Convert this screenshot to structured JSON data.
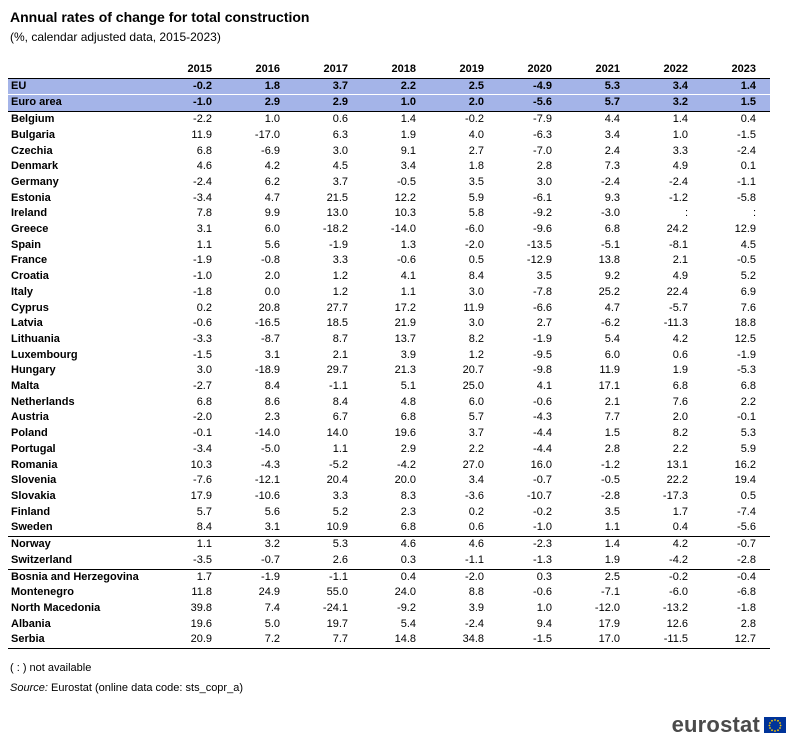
{
  "header": {
    "title": "Annual rates of change for total construction",
    "subtitle": "(%, calendar adjusted data, 2015-2023)"
  },
  "footer": {
    "not_available_note": "( : ) not available",
    "source_label": "Source:",
    "source_text": "Eurostat (online data code: sts_copr_a)",
    "logo_text": "eurostat"
  },
  "colors": {
    "highlight_row": "#a4b4e8",
    "logo_text": "#4a4a4a",
    "eu_flag_blue": "#003399",
    "eu_flag_stars": "#ffcc00"
  },
  "chart_data": {
    "type": "table",
    "title": "Annual rates of change for total construction",
    "subtitle": "(%, calendar adjusted data, 2015-2023)",
    "columns": [
      "2015",
      "2016",
      "2017",
      "2018",
      "2019",
      "2020",
      "2021",
      "2022",
      "2023"
    ],
    "rows": [
      {
        "name": "EU",
        "values": [
          "-0.2",
          "1.8",
          "3.7",
          "2.2",
          "2.5",
          "-4.9",
          "5.3",
          "3.4",
          "1.4"
        ]
      },
      {
        "name": "Euro area",
        "values": [
          "-1.0",
          "2.9",
          "2.9",
          "1.0",
          "2.0",
          "-5.6",
          "5.7",
          "3.2",
          "1.5"
        ]
      },
      {
        "name": "Belgium",
        "values": [
          "-2.2",
          "1.0",
          "0.6",
          "1.4",
          "-0.2",
          "-7.9",
          "4.4",
          "1.4",
          "0.4"
        ]
      },
      {
        "name": "Bulgaria",
        "values": [
          "11.9",
          "-17.0",
          "6.3",
          "1.9",
          "4.0",
          "-6.3",
          "3.4",
          "1.0",
          "-1.5"
        ]
      },
      {
        "name": "Czechia",
        "values": [
          "6.8",
          "-6.9",
          "3.0",
          "9.1",
          "2.7",
          "-7.0",
          "2.4",
          "3.3",
          "-2.4"
        ]
      },
      {
        "name": "Denmark",
        "values": [
          "4.6",
          "4.2",
          "4.5",
          "3.4",
          "1.8",
          "2.8",
          "7.3",
          "4.9",
          "0.1"
        ]
      },
      {
        "name": "Germany",
        "values": [
          "-2.4",
          "6.2",
          "3.7",
          "-0.5",
          "3.5",
          "3.0",
          "-2.4",
          "-2.4",
          "-1.1"
        ]
      },
      {
        "name": "Estonia",
        "values": [
          "-3.4",
          "4.7",
          "21.5",
          "12.2",
          "5.9",
          "-6.1",
          "9.3",
          "-1.2",
          "-5.8"
        ]
      },
      {
        "name": "Ireland",
        "values": [
          "7.8",
          "9.9",
          "13.0",
          "10.3",
          "5.8",
          "-9.2",
          "-3.0",
          ":",
          ":"
        ]
      },
      {
        "name": "Greece",
        "values": [
          "3.1",
          "6.0",
          "-18.2",
          "-14.0",
          "-6.0",
          "-9.6",
          "6.8",
          "24.2",
          "12.9"
        ]
      },
      {
        "name": "Spain",
        "values": [
          "1.1",
          "5.6",
          "-1.9",
          "1.3",
          "-2.0",
          "-13.5",
          "-5.1",
          "-8.1",
          "4.5"
        ]
      },
      {
        "name": "France",
        "values": [
          "-1.9",
          "-0.8",
          "3.3",
          "-0.6",
          "0.5",
          "-12.9",
          "13.8",
          "2.1",
          "-0.5"
        ]
      },
      {
        "name": "Croatia",
        "values": [
          "-1.0",
          "2.0",
          "1.2",
          "4.1",
          "8.4",
          "3.5",
          "9.2",
          "4.9",
          "5.2"
        ]
      },
      {
        "name": "Italy",
        "values": [
          "-1.8",
          "0.0",
          "1.2",
          "1.1",
          "3.0",
          "-7.8",
          "25.2",
          "22.4",
          "6.9"
        ]
      },
      {
        "name": "Cyprus",
        "values": [
          "0.2",
          "20.8",
          "27.7",
          "17.2",
          "11.9",
          "-6.6",
          "4.7",
          "-5.7",
          "7.6"
        ]
      },
      {
        "name": "Latvia",
        "values": [
          "-0.6",
          "-16.5",
          "18.5",
          "21.9",
          "3.0",
          "2.7",
          "-6.2",
          "-11.3",
          "18.8"
        ]
      },
      {
        "name": "Lithuania",
        "values": [
          "-3.3",
          "-8.7",
          "8.7",
          "13.7",
          "8.2",
          "-1.9",
          "5.4",
          "4.2",
          "12.5"
        ]
      },
      {
        "name": "Luxembourg",
        "values": [
          "-1.5",
          "3.1",
          "2.1",
          "3.9",
          "1.2",
          "-9.5",
          "6.0",
          "0.6",
          "-1.9"
        ]
      },
      {
        "name": "Hungary",
        "values": [
          "3.0",
          "-18.9",
          "29.7",
          "21.3",
          "20.7",
          "-9.8",
          "11.9",
          "1.9",
          "-5.3"
        ]
      },
      {
        "name": "Malta",
        "values": [
          "-2.7",
          "8.4",
          "-1.1",
          "5.1",
          "25.0",
          "4.1",
          "17.1",
          "6.8",
          "6.8"
        ]
      },
      {
        "name": "Netherlands",
        "values": [
          "6.8",
          "8.6",
          "8.4",
          "4.8",
          "6.0",
          "-0.6",
          "2.1",
          "7.6",
          "2.2"
        ]
      },
      {
        "name": "Austria",
        "values": [
          "-2.0",
          "2.3",
          "6.7",
          "6.8",
          "5.7",
          "-4.3",
          "7.7",
          "2.0",
          "-0.1"
        ]
      },
      {
        "name": "Poland",
        "values": [
          "-0.1",
          "-14.0",
          "14.0",
          "19.6",
          "3.7",
          "-4.4",
          "1.5",
          "8.2",
          "5.3"
        ]
      },
      {
        "name": "Portugal",
        "values": [
          "-3.4",
          "-5.0",
          "1.1",
          "2.9",
          "2.2",
          "-4.4",
          "2.8",
          "2.2",
          "5.9"
        ]
      },
      {
        "name": "Romania",
        "values": [
          "10.3",
          "-4.3",
          "-5.2",
          "-4.2",
          "27.0",
          "16.0",
          "-1.2",
          "13.1",
          "16.2"
        ]
      },
      {
        "name": "Slovenia",
        "values": [
          "-7.6",
          "-12.1",
          "20.4",
          "20.0",
          "3.4",
          "-0.7",
          "-0.5",
          "22.2",
          "19.4"
        ]
      },
      {
        "name": "Slovakia",
        "values": [
          "17.9",
          "-10.6",
          "3.3",
          "8.3",
          "-3.6",
          "-10.7",
          "-2.8",
          "-17.3",
          "0.5"
        ]
      },
      {
        "name": "Finland",
        "values": [
          "5.7",
          "5.6",
          "5.2",
          "2.3",
          "0.2",
          "-0.2",
          "3.5",
          "1.7",
          "-7.4"
        ]
      },
      {
        "name": "Sweden",
        "values": [
          "8.4",
          "3.1",
          "10.9",
          "6.8",
          "0.6",
          "-1.0",
          "1.1",
          "0.4",
          "-5.6"
        ]
      },
      {
        "name": "Norway",
        "values": [
          "1.1",
          "3.2",
          "5.3",
          "4.6",
          "4.6",
          "-2.3",
          "1.4",
          "4.2",
          "-0.7"
        ]
      },
      {
        "name": "Switzerland",
        "values": [
          "-3.5",
          "-0.7",
          "2.6",
          "0.3",
          "-1.1",
          "-1.3",
          "1.9",
          "-4.2",
          "-2.8"
        ]
      },
      {
        "name": "Bosnia and Herzegovina",
        "values": [
          "1.7",
          "-1.9",
          "-1.1",
          "0.4",
          "-2.0",
          "0.3",
          "2.5",
          "-0.2",
          "-0.4"
        ]
      },
      {
        "name": "Montenegro",
        "values": [
          "11.8",
          "24.9",
          "55.0",
          "24.0",
          "8.8",
          "-0.6",
          "-7.1",
          "-6.0",
          "-6.8"
        ]
      },
      {
        "name": "North Macedonia",
        "values": [
          "39.8",
          "7.4",
          "-24.1",
          "-9.2",
          "3.9",
          "1.0",
          "-12.0",
          "-13.2",
          "-1.8"
        ]
      },
      {
        "name": "Albania",
        "values": [
          "19.6",
          "5.0",
          "19.7",
          "5.4",
          "-2.4",
          "9.4",
          "17.9",
          "12.6",
          "2.8"
        ]
      },
      {
        "name": "Serbia",
        "values": [
          "20.9",
          "7.2",
          "7.7",
          "14.8",
          "34.8",
          "-1.5",
          "17.0",
          "-11.5",
          "12.7"
        ]
      }
    ]
  }
}
